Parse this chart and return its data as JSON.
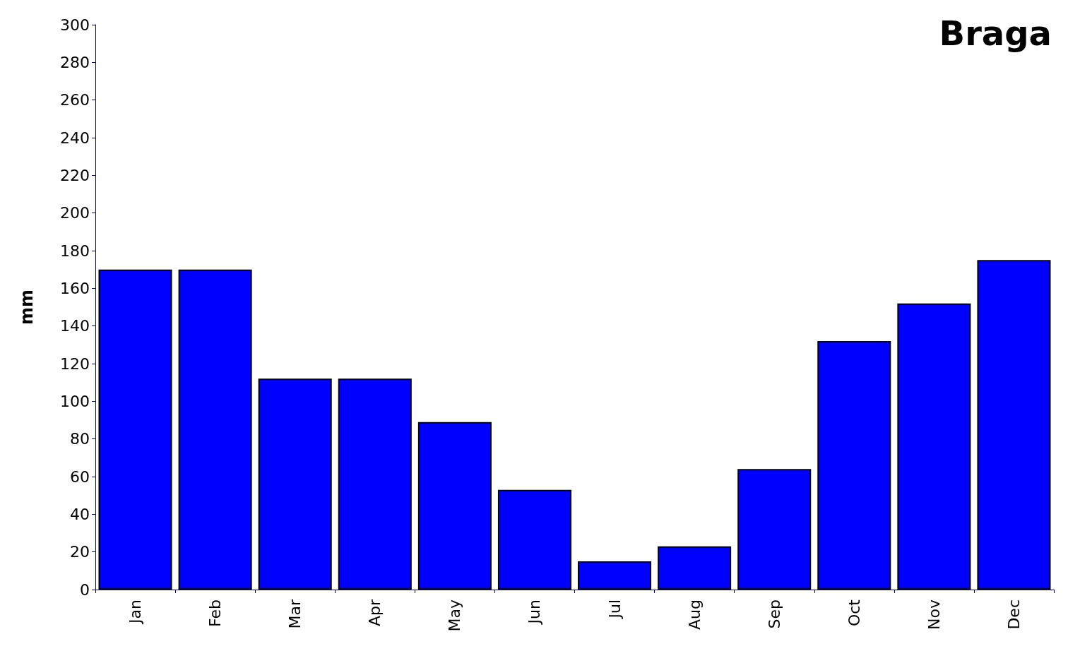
{
  "chart_data": {
    "type": "bar",
    "title": "Braga",
    "ylabel": "mm",
    "categories": [
      "Jan",
      "Feb",
      "Mar",
      "Apr",
      "May",
      "Jun",
      "Jul",
      "Aug",
      "Sep",
      "Oct",
      "Nov",
      "Dec"
    ],
    "values": [
      170,
      170,
      112,
      112,
      89,
      53,
      15,
      23,
      64,
      132,
      152,
      175
    ],
    "color": "#0000ff",
    "ylim": [
      0,
      300
    ],
    "yticks": [
      0,
      20,
      40,
      60,
      80,
      100,
      120,
      140,
      160,
      180,
      200,
      220,
      240,
      260,
      280,
      300
    ],
    "grid": false
  }
}
